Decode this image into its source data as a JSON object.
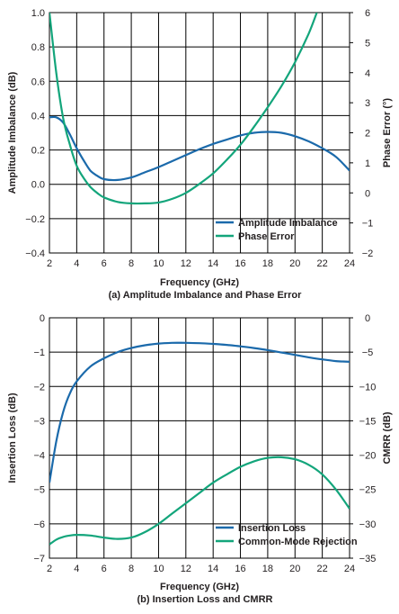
{
  "colors": {
    "blue": "#1b6aab",
    "green": "#13a57b",
    "grid": "#000000",
    "text": "#231f20"
  },
  "chart_data": [
    {
      "type": "line",
      "caption": "(a) Amplitude Imbalance and Phase Error",
      "xlabel": "Frequency (GHz)",
      "ylabel": "Amplitude Imbalance (dB)",
      "y2label": "Phase Error (°)",
      "xlim": [
        2,
        24
      ],
      "ylim": [
        -0.4,
        1.0
      ],
      "y2lim": [
        -2,
        6
      ],
      "xticks": [
        "2",
        "4",
        "6",
        "8",
        "10",
        "12",
        "14",
        "16",
        "18",
        "20",
        "22",
        "24"
      ],
      "yticks": [
        "1.0",
        "0.8",
        "0.6",
        "0.4",
        "0.2",
        "0.0",
        "−0.2",
        "−0.4"
      ],
      "y2ticks": [
        "6",
        "5",
        "4",
        "3",
        "2",
        "1",
        "0",
        "−1",
        "−2"
      ],
      "grid": true,
      "legend_position": "bottom-right",
      "series": [
        {
          "name": "Amplitude Imbalance",
          "axis": "left",
          "color": "#1b6aab",
          "x": [
            2,
            2.5,
            3,
            3.5,
            4,
            4.5,
            5,
            5.5,
            6,
            7,
            8,
            9,
            10,
            11,
            12,
            13,
            14,
            15,
            16,
            17,
            18,
            19,
            20,
            21,
            22,
            23,
            24
          ],
          "y": [
            0.39,
            0.39,
            0.36,
            0.29,
            0.21,
            0.14,
            0.08,
            0.05,
            0.03,
            0.025,
            0.04,
            0.07,
            0.1,
            0.135,
            0.17,
            0.205,
            0.235,
            0.26,
            0.285,
            0.3,
            0.305,
            0.3,
            0.28,
            0.25,
            0.21,
            0.16,
            0.08
          ]
        },
        {
          "name": "Phase Error",
          "axis": "right",
          "color": "#13a57b",
          "x": [
            2,
            2.5,
            3,
            3.5,
            4,
            4.5,
            5,
            5.5,
            6,
            7,
            8,
            9,
            10,
            11,
            12,
            13,
            14,
            15,
            16,
            17,
            18,
            19,
            20,
            21,
            21.6
          ],
          "y": [
            6.0,
            4.0,
            2.5,
            1.6,
            0.9,
            0.5,
            0.2,
            0.0,
            -0.15,
            -0.3,
            -0.35,
            -0.35,
            -0.32,
            -0.2,
            0.0,
            0.3,
            0.65,
            1.1,
            1.6,
            2.2,
            2.85,
            3.55,
            4.35,
            5.3,
            6.0
          ]
        }
      ]
    },
    {
      "type": "line",
      "caption": "(b) Insertion Loss and CMRR",
      "xlabel": "Frequency (GHz)",
      "ylabel": "Insertion Loss (dB)",
      "y2label": "CMRR (dB)",
      "xlim": [
        2,
        24
      ],
      "ylim": [
        -7,
        0
      ],
      "y2lim": [
        -35,
        0
      ],
      "xticks": [
        "2",
        "4",
        "6",
        "8",
        "10",
        "12",
        "14",
        "16",
        "18",
        "20",
        "22",
        "24"
      ],
      "yticks": [
        "0",
        "−1",
        "−2",
        "−3",
        "−4",
        "−5",
        "−6",
        "−7"
      ],
      "y2ticks": [
        "0",
        "−5",
        "−10",
        "−15",
        "−20",
        "−25",
        "−30",
        "−35"
      ],
      "grid": true,
      "legend_position": "bottom-right",
      "series": [
        {
          "name": "Insertion Loss",
          "axis": "left",
          "color": "#1b6aab",
          "x": [
            2,
            2.5,
            3,
            3.5,
            4,
            5,
            6,
            7,
            8,
            9,
            10,
            11,
            12,
            13,
            14,
            15,
            16,
            17,
            18,
            19,
            20,
            21,
            22,
            23,
            24
          ],
          "y": [
            -4.8,
            -3.6,
            -2.75,
            -2.2,
            -1.85,
            -1.42,
            -1.18,
            -1.0,
            -0.88,
            -0.8,
            -0.75,
            -0.73,
            -0.73,
            -0.74,
            -0.76,
            -0.79,
            -0.83,
            -0.88,
            -0.94,
            -1.01,
            -1.08,
            -1.15,
            -1.21,
            -1.26,
            -1.28
          ]
        },
        {
          "name": "Common-Mode Rejection",
          "axis": "right",
          "color": "#13a57b",
          "x": [
            2,
            2.5,
            3,
            3.5,
            4,
            5,
            6,
            7,
            8,
            9,
            10,
            11,
            12,
            13,
            14,
            15,
            16,
            17,
            18,
            19,
            20,
            21,
            22,
            23,
            24
          ],
          "y": [
            -33.0,
            -32.3,
            -31.9,
            -31.7,
            -31.6,
            -31.7,
            -32.0,
            -32.2,
            -32.0,
            -31.2,
            -30.0,
            -28.5,
            -27.0,
            -25.5,
            -24.0,
            -22.8,
            -21.7,
            -20.9,
            -20.4,
            -20.3,
            -20.6,
            -21.4,
            -22.8,
            -25.0,
            -27.8
          ]
        }
      ]
    }
  ]
}
